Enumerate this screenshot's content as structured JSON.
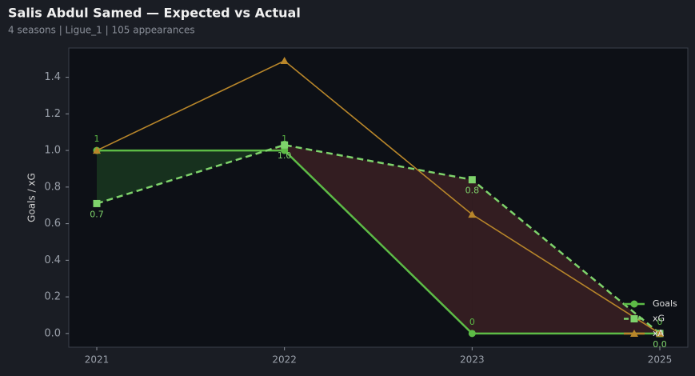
{
  "chart_data": {
    "type": "line",
    "title": "Salis Abdul Samed — Expected vs Actual",
    "subtitle": "4 seasons | Ligue_1 | 105 appearances",
    "y_label": "Goals / xG",
    "categories": [
      "2021",
      "2022",
      "2023",
      "2025"
    ],
    "series": [
      {
        "name": "Goals",
        "color": "#5dbb46",
        "marker": "circle",
        "dash": false,
        "values": [
          1,
          1,
          0,
          0
        ],
        "value_labels": [
          "1",
          "1",
          "0",
          "0"
        ]
      },
      {
        "name": "xG",
        "color": "#7ed36b",
        "marker": "square",
        "dash": true,
        "values": [
          0.71,
          1.03,
          0.84,
          0.0
        ],
        "value_labels": [
          "0.7",
          "1.0",
          "0.8",
          "0.0"
        ]
      },
      {
        "name": "xA",
        "color": "#b8862a",
        "marker": "triangle",
        "dash": false,
        "values": [
          1.0,
          1.49,
          0.65,
          0.0
        ]
      }
    ],
    "ylim": [
      -0.075,
      1.56
    ],
    "yticks": [
      {
        "value": 0,
        "label": "0.0"
      },
      0.2,
      0.4,
      0.6,
      0.8,
      {
        "value": 1,
        "label": "1.0"
      },
      1.2,
      1.4
    ],
    "legend": "lower right"
  }
}
